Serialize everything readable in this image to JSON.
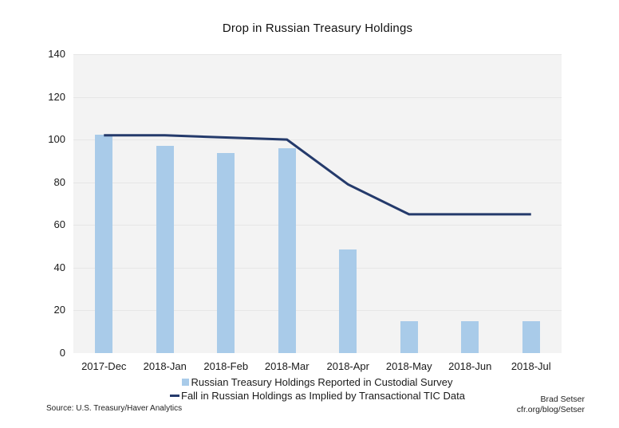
{
  "chart_data": {
    "type": "bar",
    "title": "Drop in Russian Treasury Holdings",
    "categories": [
      "2017-Dec",
      "2018-Jan",
      "2018-Feb",
      "2018-Mar",
      "2018-Apr",
      "2018-May",
      "2018-Jun",
      "2018-Jul"
    ],
    "series": [
      {
        "name": "Russian Treasury Holdings Reported in Custodial Survey",
        "type": "bar",
        "values": [
          102.2,
          96.9,
          93.8,
          96.1,
          48.7,
          14.9,
          14.9,
          14.9
        ]
      },
      {
        "name": "Fall in Russian Holdings as Implied by Transactional TIC Data",
        "type": "line",
        "values": [
          102,
          102,
          101,
          100,
          79,
          65,
          65,
          65
        ]
      }
    ],
    "xlabel": "",
    "ylabel": "",
    "ylim": [
      0,
      140
    ],
    "yticks": [
      0,
      20,
      40,
      60,
      80,
      100,
      120,
      140
    ],
    "grid": true,
    "legend_position": "bottom"
  },
  "colors": {
    "bar": "#a9cbe9",
    "line": "#243a6b",
    "plot_bg": "#f3f3f3",
    "gridline": "#e6e6e6",
    "text": "#1a1a1a"
  },
  "footer": {
    "source": "Source: U.S. Treasury/Haver Analytics",
    "credit_name": "Brad Setser",
    "credit_url": "cfr.org/blog/Setser"
  }
}
